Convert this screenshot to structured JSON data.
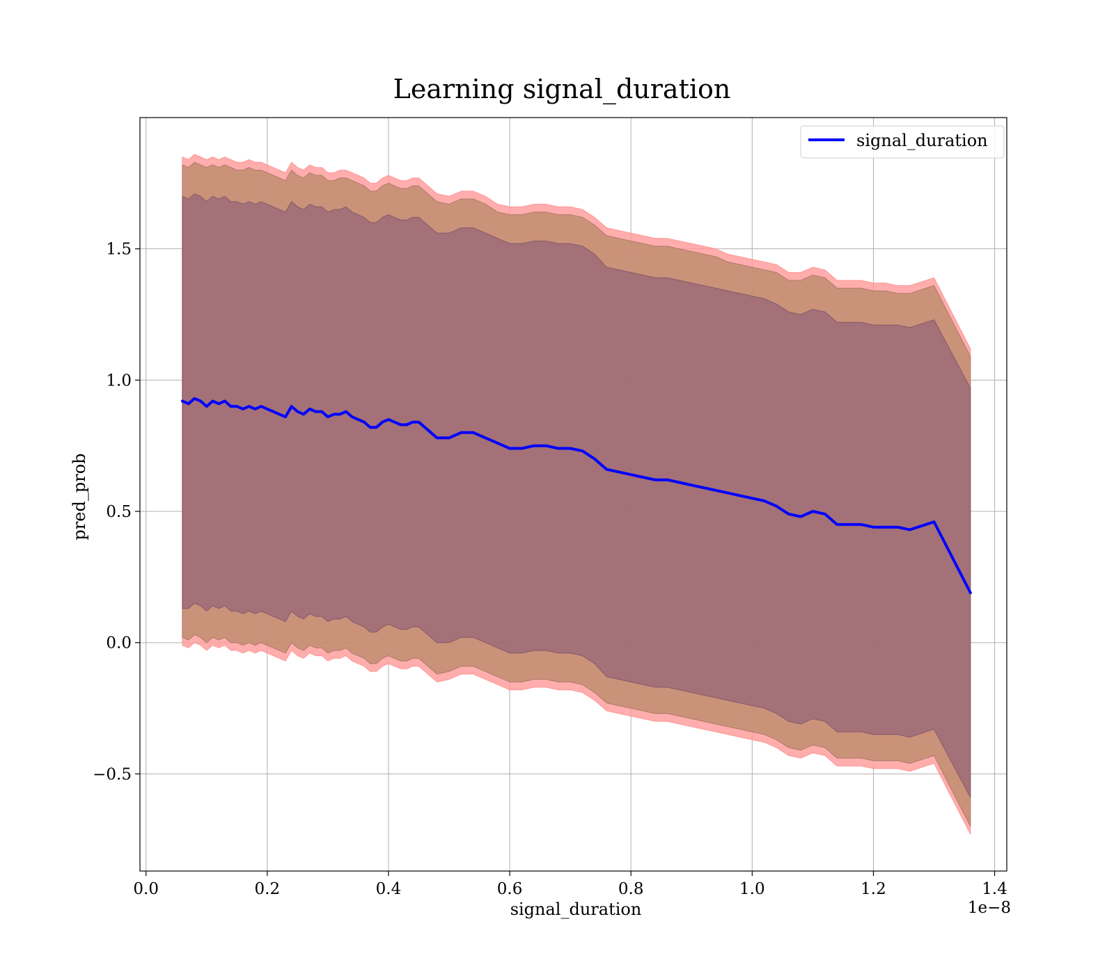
{
  "chart_data": {
    "type": "line",
    "title": "Learning signal_duration",
    "xlabel": "signal_duration",
    "ylabel": "pred_prob",
    "x_offset_label": "1e−8",
    "xlim": [
      -0.01,
      1.42
    ],
    "ylim": [
      -0.87,
      2.0
    ],
    "x_ticks": [
      0.0,
      0.2,
      0.4,
      0.6,
      0.8,
      1.0,
      1.2,
      1.4
    ],
    "x_tick_labels": [
      "0.0",
      "0.2",
      "0.4",
      "0.6",
      "0.8",
      "1.0",
      "1.2",
      "1.4"
    ],
    "y_ticks": [
      -0.5,
      0.0,
      0.5,
      1.0,
      1.5
    ],
    "y_tick_labels": [
      "−0.5",
      "0.0",
      "0.5",
      "1.0",
      "1.5"
    ],
    "grid": true,
    "legend_position": "top-right",
    "series": [
      {
        "name": "signal_duration",
        "color": "#0000ff",
        "x": [
          0.06,
          0.07,
          0.08,
          0.09,
          0.1,
          0.11,
          0.12,
          0.13,
          0.14,
          0.15,
          0.16,
          0.17,
          0.18,
          0.19,
          0.2,
          0.21,
          0.22,
          0.23,
          0.24,
          0.25,
          0.26,
          0.27,
          0.28,
          0.29,
          0.3,
          0.31,
          0.32,
          0.33,
          0.34,
          0.35,
          0.36,
          0.37,
          0.38,
          0.39,
          0.4,
          0.41,
          0.42,
          0.43,
          0.44,
          0.45,
          0.46,
          0.47,
          0.48,
          0.5,
          0.52,
          0.54,
          0.56,
          0.58,
          0.6,
          0.62,
          0.64,
          0.66,
          0.68,
          0.7,
          0.72,
          0.74,
          0.76,
          0.78,
          0.8,
          0.82,
          0.84,
          0.86,
          0.88,
          0.9,
          0.92,
          0.94,
          0.96,
          0.98,
          1.0,
          1.02,
          1.04,
          1.06,
          1.08,
          1.1,
          1.12,
          1.14,
          1.16,
          1.18,
          1.2,
          1.22,
          1.24,
          1.26,
          1.3,
          1.36
        ],
        "y": [
          0.92,
          0.91,
          0.93,
          0.92,
          0.9,
          0.92,
          0.91,
          0.92,
          0.9,
          0.9,
          0.89,
          0.9,
          0.89,
          0.9,
          0.89,
          0.88,
          0.87,
          0.86,
          0.9,
          0.88,
          0.87,
          0.89,
          0.88,
          0.88,
          0.86,
          0.87,
          0.87,
          0.88,
          0.86,
          0.85,
          0.84,
          0.82,
          0.82,
          0.84,
          0.85,
          0.84,
          0.83,
          0.83,
          0.84,
          0.84,
          0.82,
          0.8,
          0.78,
          0.78,
          0.8,
          0.8,
          0.78,
          0.76,
          0.74,
          0.74,
          0.75,
          0.75,
          0.74,
          0.74,
          0.73,
          0.7,
          0.66,
          0.65,
          0.64,
          0.63,
          0.62,
          0.62,
          0.61,
          0.6,
          0.59,
          0.58,
          0.57,
          0.56,
          0.55,
          0.54,
          0.52,
          0.49,
          0.48,
          0.5,
          0.49,
          0.45,
          0.45,
          0.45,
          0.44,
          0.44,
          0.44,
          0.43,
          0.46,
          0.19
        ]
      }
    ],
    "bands": [
      {
        "description_color": "#ff9999",
        "upper": [
          1.85,
          1.84,
          1.86,
          1.85,
          1.84,
          1.85,
          1.84,
          1.85,
          1.84,
          1.83,
          1.83,
          1.84,
          1.83,
          1.83,
          1.82,
          1.81,
          1.8,
          1.79,
          1.83,
          1.81,
          1.8,
          1.82,
          1.81,
          1.81,
          1.79,
          1.79,
          1.8,
          1.8,
          1.79,
          1.78,
          1.77,
          1.75,
          1.75,
          1.77,
          1.78,
          1.77,
          1.76,
          1.76,
          1.77,
          1.77,
          1.75,
          1.73,
          1.71,
          1.7,
          1.72,
          1.72,
          1.7,
          1.67,
          1.66,
          1.66,
          1.67,
          1.67,
          1.66,
          1.66,
          1.65,
          1.62,
          1.58,
          1.57,
          1.56,
          1.55,
          1.54,
          1.54,
          1.53,
          1.52,
          1.51,
          1.5,
          1.48,
          1.47,
          1.46,
          1.45,
          1.44,
          1.41,
          1.41,
          1.43,
          1.42,
          1.38,
          1.38,
          1.38,
          1.37,
          1.37,
          1.36,
          1.36,
          1.39,
          1.12
        ],
        "lower": [
          -0.01,
          -0.02,
          0.0,
          -0.01,
          -0.03,
          -0.01,
          -0.02,
          -0.01,
          -0.03,
          -0.03,
          -0.04,
          -0.03,
          -0.04,
          -0.03,
          -0.04,
          -0.05,
          -0.06,
          -0.07,
          -0.03,
          -0.05,
          -0.06,
          -0.04,
          -0.05,
          -0.05,
          -0.07,
          -0.06,
          -0.06,
          -0.05,
          -0.07,
          -0.08,
          -0.09,
          -0.11,
          -0.11,
          -0.09,
          -0.08,
          -0.09,
          -0.1,
          -0.1,
          -0.09,
          -0.09,
          -0.11,
          -0.13,
          -0.15,
          -0.14,
          -0.12,
          -0.12,
          -0.14,
          -0.16,
          -0.18,
          -0.18,
          -0.17,
          -0.17,
          -0.18,
          -0.18,
          -0.19,
          -0.22,
          -0.26,
          -0.27,
          -0.28,
          -0.29,
          -0.3,
          -0.3,
          -0.31,
          -0.32,
          -0.33,
          -0.34,
          -0.35,
          -0.36,
          -0.37,
          -0.38,
          -0.4,
          -0.43,
          -0.44,
          -0.42,
          -0.43,
          -0.47,
          -0.47,
          -0.47,
          -0.48,
          -0.48,
          -0.48,
          -0.49,
          -0.46,
          -0.73
        ]
      },
      {
        "description_color": "#b08070",
        "upper": [
          1.82,
          1.81,
          1.83,
          1.82,
          1.81,
          1.82,
          1.81,
          1.82,
          1.81,
          1.8,
          1.8,
          1.81,
          1.8,
          1.8,
          1.79,
          1.78,
          1.77,
          1.76,
          1.8,
          1.78,
          1.77,
          1.79,
          1.78,
          1.78,
          1.76,
          1.76,
          1.77,
          1.77,
          1.76,
          1.75,
          1.74,
          1.72,
          1.72,
          1.74,
          1.75,
          1.74,
          1.73,
          1.73,
          1.74,
          1.74,
          1.72,
          1.7,
          1.68,
          1.67,
          1.69,
          1.69,
          1.67,
          1.64,
          1.63,
          1.63,
          1.64,
          1.64,
          1.63,
          1.63,
          1.62,
          1.59,
          1.55,
          1.54,
          1.53,
          1.52,
          1.51,
          1.51,
          1.5,
          1.49,
          1.48,
          1.47,
          1.45,
          1.44,
          1.43,
          1.42,
          1.41,
          1.38,
          1.38,
          1.4,
          1.39,
          1.35,
          1.35,
          1.35,
          1.34,
          1.34,
          1.33,
          1.33,
          1.36,
          1.09
        ],
        "lower": [
          0.02,
          0.01,
          0.03,
          0.02,
          0.0,
          0.02,
          0.01,
          0.02,
          0.0,
          0.0,
          -0.01,
          0.0,
          -0.01,
          0.0,
          -0.01,
          -0.02,
          -0.03,
          -0.04,
          0.0,
          -0.02,
          -0.03,
          -0.01,
          -0.02,
          -0.02,
          -0.04,
          -0.03,
          -0.03,
          -0.02,
          -0.04,
          -0.05,
          -0.06,
          -0.08,
          -0.08,
          -0.06,
          -0.05,
          -0.06,
          -0.07,
          -0.07,
          -0.06,
          -0.06,
          -0.08,
          -0.1,
          -0.12,
          -0.11,
          -0.09,
          -0.09,
          -0.11,
          -0.13,
          -0.15,
          -0.15,
          -0.14,
          -0.14,
          -0.15,
          -0.15,
          -0.16,
          -0.19,
          -0.23,
          -0.24,
          -0.25,
          -0.26,
          -0.27,
          -0.27,
          -0.28,
          -0.29,
          -0.3,
          -0.31,
          -0.32,
          -0.33,
          -0.34,
          -0.35,
          -0.37,
          -0.4,
          -0.41,
          -0.39,
          -0.4,
          -0.44,
          -0.44,
          -0.44,
          -0.45,
          -0.45,
          -0.45,
          -0.46,
          -0.43,
          -0.7
        ]
      },
      {
        "description_color": "#a07078",
        "upper": [
          1.7,
          1.69,
          1.71,
          1.7,
          1.68,
          1.7,
          1.69,
          1.7,
          1.68,
          1.68,
          1.67,
          1.68,
          1.67,
          1.68,
          1.67,
          1.66,
          1.65,
          1.64,
          1.68,
          1.66,
          1.65,
          1.67,
          1.66,
          1.66,
          1.64,
          1.65,
          1.65,
          1.66,
          1.64,
          1.63,
          1.62,
          1.6,
          1.6,
          1.62,
          1.63,
          1.62,
          1.61,
          1.61,
          1.62,
          1.62,
          1.6,
          1.58,
          1.56,
          1.56,
          1.58,
          1.58,
          1.56,
          1.54,
          1.52,
          1.52,
          1.53,
          1.53,
          1.52,
          1.52,
          1.51,
          1.48,
          1.43,
          1.42,
          1.41,
          1.4,
          1.39,
          1.39,
          1.38,
          1.37,
          1.36,
          1.35,
          1.34,
          1.33,
          1.32,
          1.31,
          1.29,
          1.26,
          1.25,
          1.27,
          1.26,
          1.22,
          1.22,
          1.22,
          1.21,
          1.21,
          1.21,
          1.2,
          1.23,
          0.97
        ],
        "lower": [
          0.13,
          0.13,
          0.15,
          0.14,
          0.12,
          0.14,
          0.13,
          0.14,
          0.12,
          0.12,
          0.11,
          0.12,
          0.11,
          0.12,
          0.11,
          0.1,
          0.09,
          0.08,
          0.12,
          0.1,
          0.09,
          0.11,
          0.1,
          0.1,
          0.08,
          0.09,
          0.09,
          0.1,
          0.08,
          0.07,
          0.06,
          0.04,
          0.04,
          0.06,
          0.07,
          0.06,
          0.05,
          0.05,
          0.06,
          0.06,
          0.04,
          0.02,
          0.0,
          0.0,
          0.02,
          0.02,
          0.0,
          -0.02,
          -0.04,
          -0.04,
          -0.03,
          -0.03,
          -0.04,
          -0.04,
          -0.05,
          -0.08,
          -0.13,
          -0.14,
          -0.15,
          -0.16,
          -0.17,
          -0.17,
          -0.18,
          -0.19,
          -0.2,
          -0.21,
          -0.22,
          -0.23,
          -0.24,
          -0.25,
          -0.27,
          -0.3,
          -0.31,
          -0.29,
          -0.3,
          -0.34,
          -0.34,
          -0.34,
          -0.35,
          -0.35,
          -0.35,
          -0.36,
          -0.33,
          -0.59
        ]
      }
    ]
  }
}
